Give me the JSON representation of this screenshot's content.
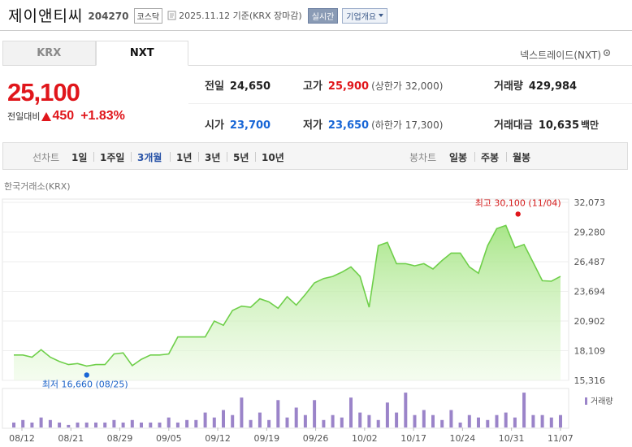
{
  "header": {
    "stock_name": "제이앤티씨",
    "stock_code": "204270",
    "market": "코스닥",
    "base_date": "2025.11.12 기준(KRX 장마감)",
    "realtime_label": "실시간",
    "company_label": "기업개요"
  },
  "tabs": {
    "krx": "KRX",
    "nxt": "NXT"
  },
  "nxt_exchange_label": "넥스트레이드(NXT)",
  "price": {
    "current": "25,100",
    "change_label": "전일대비",
    "change": "450",
    "change_pct": "+1.83%"
  },
  "stats": {
    "prev_close": {
      "label": "전일",
      "value": "24,650"
    },
    "high": {
      "label": "고가",
      "value": "25,900",
      "limit": "(상한가 32,000)"
    },
    "volume": {
      "label": "거래량",
      "value": "429,984"
    },
    "open": {
      "label": "시가",
      "value": "23,700"
    },
    "low": {
      "label": "저가",
      "value": "23,650",
      "limit": "(하한가 17,300)"
    },
    "amount": {
      "label": "거래대금",
      "value": "10,635",
      "unit": "백만"
    }
  },
  "periods": {
    "line_label": "선차트",
    "line": [
      "1일",
      "1주일",
      "3개월",
      "1년",
      "3년",
      "5년",
      "10년"
    ],
    "active": "3개월",
    "candle_label": "봉차트",
    "candle": [
      "일봉",
      "주봉",
      "월봉"
    ]
  },
  "chart_source": "한국거래소(KRX)",
  "colors": {
    "up": "#e0161b",
    "down": "#1866d6",
    "line": "#7ed957",
    "volume": "#9b84c9"
  },
  "chart_data": {
    "type": "area",
    "yticks": [
      "32,073",
      "29,280",
      "26,487",
      "23,694",
      "20,902",
      "18,109",
      "15,316"
    ],
    "ylim": [
      15316,
      32073
    ],
    "xticks": [
      "08/12",
      "08/21",
      "08/29",
      "09/05",
      "09/12",
      "09/19",
      "09/26",
      "10/02",
      "10/17",
      "10/24",
      "10/31",
      "11/07"
    ],
    "high_annotation": "최고 30,100 (11/04)",
    "low_annotation": "최저 16,660 (08/25)",
    "volume_legend": "거래량",
    "prices": [
      17700,
      17700,
      17500,
      18200,
      17500,
      17100,
      16800,
      16900,
      16660,
      16800,
      16800,
      17800,
      17900,
      16700,
      17300,
      17700,
      17700,
      17800,
      19400,
      19400,
      19400,
      19400,
      20900,
      20500,
      21900,
      22300,
      22200,
      23000,
      22700,
      22100,
      23200,
      22400,
      23400,
      24500,
      24900,
      25100,
      25500,
      26000,
      25100,
      22200,
      28000,
      28300,
      26300,
      26300,
      26100,
      26300,
      25800,
      26600,
      27300,
      27300,
      26000,
      25400,
      28000,
      29600,
      29900,
      27800,
      28100,
      26400,
      24700,
      24650,
      25100
    ],
    "volumes": [
      2,
      3,
      2,
      4,
      3,
      2,
      1,
      2,
      2,
      2,
      2,
      3,
      2,
      3,
      2,
      2,
      2,
      4,
      2,
      3,
      3,
      6,
      4,
      7,
      5,
      12,
      3,
      6,
      3,
      11,
      4,
      8,
      5,
      11,
      3,
      5,
      4,
      12,
      6,
      5,
      3,
      10,
      6,
      14,
      5,
      7,
      5,
      3,
      7,
      2,
      5,
      4,
      3,
      5,
      6,
      4,
      14,
      5,
      5,
      4,
      5
    ]
  }
}
